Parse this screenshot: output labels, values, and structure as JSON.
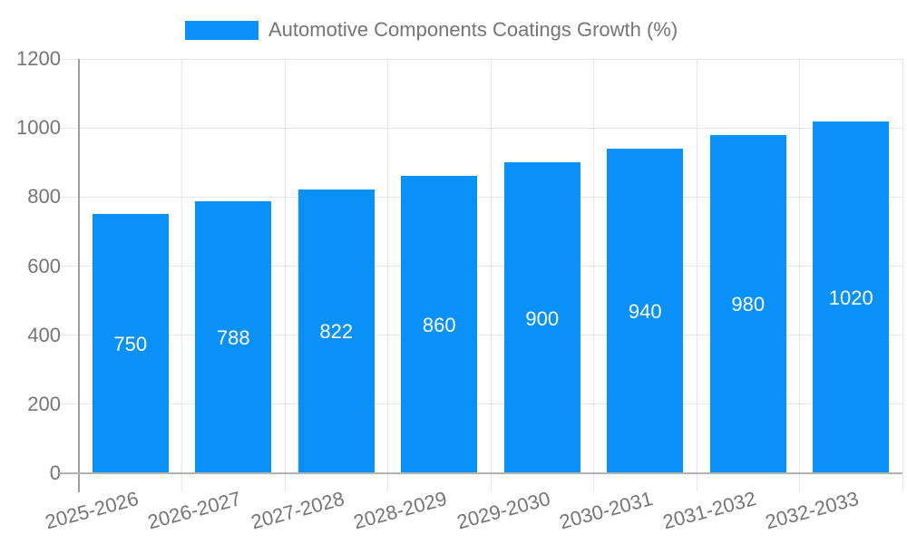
{
  "legend": {
    "label": "Automotive Components Coatings Growth (%)",
    "swatch_color": "#0990f9"
  },
  "chart_data": {
    "type": "bar",
    "title": "Automotive Components Coatings Growth (%)",
    "categories": [
      "2025-2026",
      "2026-2027",
      "2027-2028",
      "2028-2029",
      "2029-2030",
      "2030-2031",
      "2031-2032",
      "2032-2033"
    ],
    "values": [
      750,
      788,
      822,
      860,
      900,
      940,
      980,
      1020
    ],
    "value_labels_shown": true,
    "xlabel": "",
    "ylabel": "",
    "ylim": [
      0,
      1200
    ],
    "yticks": [
      0,
      200,
      400,
      600,
      800,
      1000,
      1200
    ],
    "grid": true,
    "legend_position": "top",
    "x_label_rotation_deg": -15,
    "colors": {
      "bar": "#0990f9",
      "axis_text": "#757575",
      "value_label": "#ffffff",
      "gridline": "#e6e6e6",
      "axis_line": "#b3b3b3",
      "y_axis_line": "#9e9e9e",
      "background": "#ffffff"
    }
  }
}
